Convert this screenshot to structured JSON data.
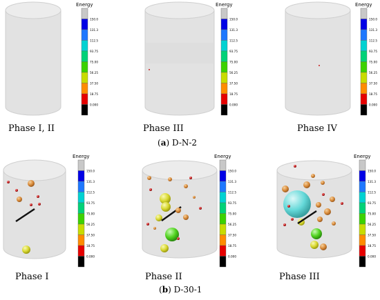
{
  "figure": {
    "row_a": {
      "caption_letter": "a",
      "caption_text": " D-N-2",
      "panels": [
        {
          "label": "Phase I, II"
        },
        {
          "label": "Phase III"
        },
        {
          "label": "Phase IV"
        }
      ]
    },
    "row_b": {
      "caption_letter": "b",
      "caption_text": " D-30-1",
      "panels": [
        {
          "label": "Phase I"
        },
        {
          "label": "Phase II"
        },
        {
          "label": "Phase III"
        }
      ]
    },
    "colorbar": {
      "title": "Energy",
      "ticks": [
        "150.0",
        "131.3",
        "112.5",
        "93.75",
        "75.00",
        "56.25",
        "37.50",
        "18.75",
        "0.000"
      ],
      "colors": [
        "#c8c8c8",
        "#0000e6",
        "#1e78ff",
        "#00d2d2",
        "#00d278",
        "#3cd200",
        "#c8dc00",
        "#ff8c00",
        "#e60000",
        "#000000"
      ]
    },
    "colors": {
      "cylinder_fill": "#e2e2e2",
      "cylinder_edge": "#cfcfcf",
      "sphere_orange": "#d98b3a",
      "sphere_yellow": "#d8d830",
      "sphere_green": "#50d21e",
      "sphere_cyan": "#5ad8d8",
      "sphere_red": "#c81e1e"
    }
  }
}
